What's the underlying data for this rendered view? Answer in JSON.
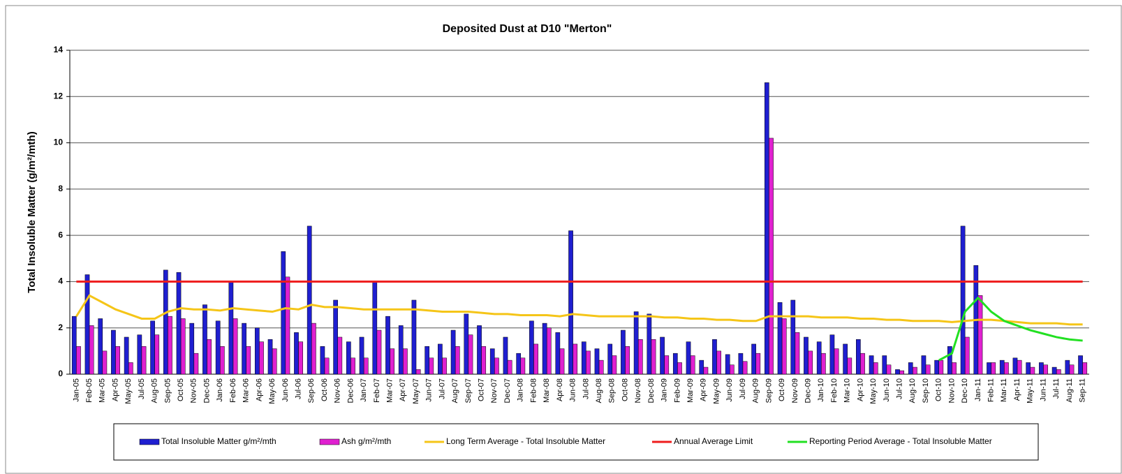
{
  "chart_data": {
    "type": "bar",
    "title": "Deposited Dust at D10 \"Merton\"",
    "y_label": "Total Insoluble Matter  (g/m²/mth)",
    "categories": [
      "Jan-05",
      "Feb-05",
      "Mar-05",
      "Apr-05",
      "May-05",
      "Jul-05",
      "Aug-05",
      "Sep-05",
      "Oct-05",
      "Nov-05",
      "Dec-05",
      "Jan-06",
      "Feb-06",
      "Mar-06",
      "Apr-06",
      "May-06",
      "Jun-06",
      "Jul-06",
      "Sep-06",
      "Oct-06",
      "Nov-06",
      "Dec-06",
      "Jan-07",
      "Feb-07",
      "Mar-07",
      "Apr-07",
      "May-07",
      "Jun-07",
      "Jul-07",
      "Aug-07",
      "Sep-07",
      "Oct-07",
      "Nov-07",
      "Dec-07",
      "Jan-08",
      "Feb-08",
      "Mar-08",
      "Apr-08",
      "Jun-08",
      "Jul-08",
      "Aug-08",
      "Sep-08",
      "Oct-08",
      "Nov-08",
      "Dec-08",
      "Jan-09",
      "Feb-09",
      "Mar-09",
      "Apr-09",
      "May-09",
      "Jun-09",
      "Jul-09",
      "Aug-09",
      "Sep-09",
      "Oct-09",
      "Nov-09",
      "Dec-09",
      "Jan-10",
      "Feb-10",
      "Mar-10",
      "Apr-10",
      "May-10",
      "Jun-10",
      "Jul-10",
      "Aug-10",
      "Sep-10",
      "Oct-10",
      "Nov-10",
      "Dec-10",
      "Jan-11",
      "Feb-11",
      "Mar-11",
      "Apr-11",
      "May-11",
      "Jun-11",
      "Jul-11",
      "Aug-11",
      "Sep-11"
    ],
    "series": [
      {
        "name": "Total Insoluble Matter  g/m²/mth",
        "type": "bar",
        "color": "#1f1fd0",
        "values": [
          2.5,
          4.3,
          2.4,
          1.9,
          1.6,
          1.7,
          2.3,
          4.5,
          4.4,
          2.2,
          3.0,
          2.3,
          4.0,
          2.2,
          2.0,
          1.5,
          5.3,
          1.8,
          6.4,
          1.2,
          3.2,
          1.4,
          1.6,
          4.0,
          2.5,
          2.1,
          3.2,
          1.2,
          1.3,
          1.9,
          2.6,
          2.1,
          1.1,
          1.6,
          0.9,
          2.3,
          2.2,
          1.8,
          6.2,
          1.4,
          1.1,
          1.3,
          1.9,
          2.7,
          2.6,
          1.6,
          0.9,
          1.4,
          0.6,
          1.5,
          0.85,
          0.9,
          1.3,
          12.6,
          3.1,
          3.2,
          1.6,
          1.4,
          1.7,
          1.3,
          1.5,
          0.8,
          0.8,
          0.2,
          0.5,
          0.8,
          0.6,
          1.2,
          6.4,
          4.7,
          0.5,
          0.6,
          0.7,
          0.5,
          0.5,
          0.3,
          0.6,
          0.8
        ]
      },
      {
        "name": "Ash  g/m²/mth",
        "type": "bar",
        "color": "#e020d0",
        "values": [
          1.2,
          2.1,
          1.0,
          1.2,
          0.5,
          1.2,
          1.7,
          2.5,
          2.4,
          0.9,
          1.5,
          1.2,
          2.4,
          1.2,
          1.4,
          1.1,
          4.2,
          1.4,
          2.2,
          0.7,
          1.6,
          0.7,
          0.7,
          1.9,
          1.1,
          1.1,
          0.2,
          0.7,
          0.7,
          1.2,
          1.7,
          1.2,
          0.7,
          0.6,
          0.7,
          1.3,
          2.0,
          1.1,
          1.3,
          1.0,
          0.6,
          0.8,
          1.2,
          1.5,
          1.5,
          0.8,
          0.5,
          0.8,
          0.3,
          1.0,
          0.4,
          0.55,
          0.9,
          10.2,
          2.4,
          1.8,
          1.0,
          0.9,
          1.1,
          0.7,
          0.9,
          0.5,
          0.4,
          0.15,
          0.3,
          0.4,
          0.6,
          0.5,
          1.6,
          3.4,
          0.5,
          0.5,
          0.6,
          0.3,
          0.4,
          0.2,
          0.4,
          0.5
        ]
      },
      {
        "name": "Long Term Average - Total Insoluble Matter",
        "type": "line",
        "color": "#f5c518",
        "values": [
          2.5,
          3.4,
          3.1,
          2.8,
          2.6,
          2.4,
          2.4,
          2.7,
          2.85,
          2.8,
          2.8,
          2.75,
          2.85,
          2.8,
          2.75,
          2.7,
          2.85,
          2.8,
          3.0,
          2.9,
          2.9,
          2.85,
          2.8,
          2.8,
          2.8,
          2.8,
          2.8,
          2.75,
          2.7,
          2.7,
          2.7,
          2.65,
          2.6,
          2.6,
          2.55,
          2.55,
          2.55,
          2.5,
          2.6,
          2.55,
          2.5,
          2.5,
          2.5,
          2.5,
          2.5,
          2.45,
          2.45,
          2.4,
          2.4,
          2.35,
          2.35,
          2.3,
          2.3,
          2.5,
          2.5,
          2.5,
          2.5,
          2.45,
          2.45,
          2.45,
          2.4,
          2.4,
          2.35,
          2.35,
          2.3,
          2.3,
          2.3,
          2.25,
          2.3,
          2.35,
          2.35,
          2.3,
          2.25,
          2.2,
          2.2,
          2.2,
          2.15,
          2.15
        ]
      },
      {
        "name": "Annual Average Limit",
        "type": "line",
        "color": "#ee1c1c",
        "values": [
          4,
          4,
          4,
          4,
          4,
          4,
          4,
          4,
          4,
          4,
          4,
          4,
          4,
          4,
          4,
          4,
          4,
          4,
          4,
          4,
          4,
          4,
          4,
          4,
          4,
          4,
          4,
          4,
          4,
          4,
          4,
          4,
          4,
          4,
          4,
          4,
          4,
          4,
          4,
          4,
          4,
          4,
          4,
          4,
          4,
          4,
          4,
          4,
          4,
          4,
          4,
          4,
          4,
          4,
          4,
          4,
          4,
          4,
          4,
          4,
          4,
          4,
          4,
          4,
          4,
          4,
          4,
          4,
          4,
          4,
          4,
          4,
          4,
          4,
          4,
          4,
          4,
          4
        ]
      },
      {
        "name": "Reporting Period Average - Total Insoluble Matter",
        "type": "line",
        "color": "#22e022",
        "values": [
          null,
          null,
          null,
          null,
          null,
          null,
          null,
          null,
          null,
          null,
          null,
          null,
          null,
          null,
          null,
          null,
          null,
          null,
          null,
          null,
          null,
          null,
          null,
          null,
          null,
          null,
          null,
          null,
          null,
          null,
          null,
          null,
          null,
          null,
          null,
          null,
          null,
          null,
          null,
          null,
          null,
          null,
          null,
          null,
          null,
          null,
          null,
          null,
          null,
          null,
          null,
          null,
          null,
          null,
          null,
          null,
          null,
          null,
          null,
          null,
          null,
          null,
          null,
          null,
          null,
          null,
          0.6,
          0.9,
          2.7,
          3.3,
          2.7,
          2.3,
          2.1,
          1.9,
          1.75,
          1.6,
          1.5,
          1.45
        ]
      }
    ],
    "ylim": [
      0,
      14
    ],
    "yticks": [
      0,
      2,
      4,
      6,
      8,
      10,
      12,
      14
    ],
    "grid": true,
    "legend": "bottom"
  }
}
